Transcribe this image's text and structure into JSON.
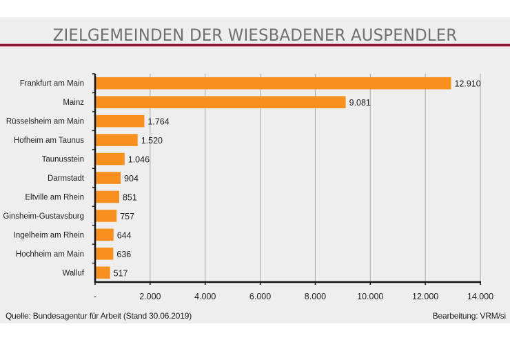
{
  "chart_data": {
    "type": "bar",
    "orientation": "horizontal",
    "title": "ZIELGEMEINDEN DER WIESBADENER AUSPENDLER",
    "categories": [
      "Frankfurt am Main",
      "Mainz",
      "Rüsselsheim am Main",
      "Hofheim am Taunus",
      "Taunusstein",
      "Darmstadt",
      "Eltville am Rhein",
      "Ginsheim-Gustavsburg",
      "Ingelheim am Rhein",
      "Hochheim am Main",
      "Walluf"
    ],
    "values": [
      12910,
      9081,
      1764,
      1520,
      1046,
      904,
      851,
      757,
      644,
      636,
      517
    ],
    "value_labels": [
      "12.910",
      "9.081",
      "1.764",
      "1.520",
      "1.046",
      "904",
      "851",
      "757",
      "644",
      "636",
      "517"
    ],
    "xlim": [
      0,
      14000
    ],
    "xticks": [
      0,
      2000,
      4000,
      6000,
      8000,
      10000,
      12000,
      14000
    ],
    "xtick_labels": [
      "-",
      "2.000",
      "4.000",
      "6.000",
      "8.000",
      "10.000",
      "12.000",
      "14.000"
    ],
    "xlabel": "",
    "ylabel": "",
    "grid": "vertical",
    "legend": "none",
    "bar_color": "#F7901E",
    "accent_rule_color": "#8B1A3D"
  },
  "footer": {
    "source": "Quelle: Bundesagentur für Arbeit (Stand 30.06.2019)",
    "credit": "Bearbeitung: VRM/si"
  }
}
